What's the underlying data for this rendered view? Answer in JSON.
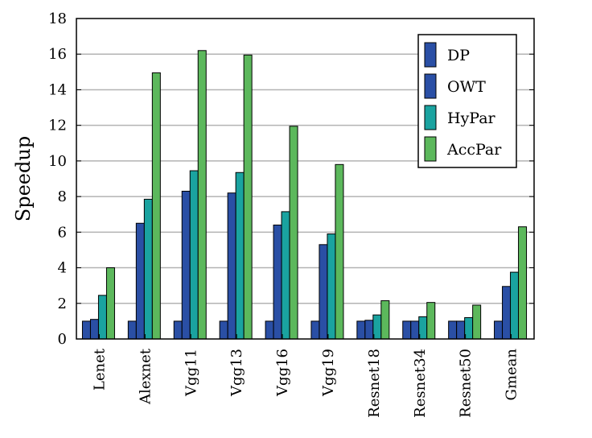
{
  "chart_data": {
    "type": "bar",
    "title": "",
    "xlabel": "",
    "ylabel": "Speedup",
    "ylim": [
      0,
      18
    ],
    "yticks": [
      0,
      2,
      4,
      6,
      8,
      10,
      12,
      14,
      16,
      18
    ],
    "grid": true,
    "legend_position": "top-right",
    "categories": [
      "Lenet",
      "Alexnet",
      "Vgg11",
      "Vgg13",
      "Vgg16",
      "Vgg19",
      "Resnet18",
      "Resnet34",
      "Resnet50",
      "Gmean"
    ],
    "series": [
      {
        "name": "DP",
        "color": "#2a4fa5",
        "values": [
          1.0,
          1.0,
          1.0,
          1.0,
          1.0,
          1.0,
          1.0,
          1.0,
          1.0,
          1.0
        ]
      },
      {
        "name": "OWT",
        "color": "#2a4fa5",
        "values": [
          1.1,
          6.5,
          8.3,
          8.2,
          6.4,
          5.3,
          1.05,
          1.0,
          1.0,
          2.95
        ]
      },
      {
        "name": "HyPar",
        "color": "#1aa3a0",
        "values": [
          2.45,
          7.85,
          9.45,
          9.35,
          7.15,
          5.9,
          1.35,
          1.25,
          1.2,
          3.75
        ]
      },
      {
        "name": "AccPar",
        "color": "#5cb85c",
        "values": [
          4.0,
          14.95,
          16.2,
          15.95,
          11.95,
          9.8,
          2.15,
          2.05,
          1.9,
          6.3
        ]
      }
    ]
  }
}
